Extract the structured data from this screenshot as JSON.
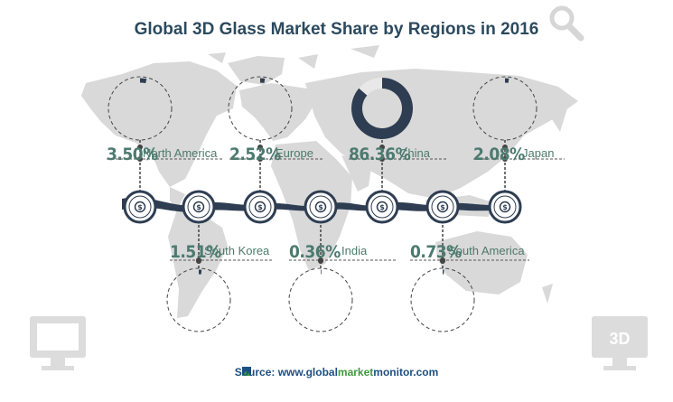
{
  "page": {
    "title": "Global 3D Glass Market Share by Regions in 2016",
    "source_prefix": "Source: www.global",
    "source_highlight": "market",
    "source_suffix": "monitor.com",
    "badge_3d": "3D"
  },
  "colors": {
    "accent": "#2e3d52",
    "map": "#d9d9d9",
    "text_green": "#4c7a6f",
    "title": "#2c4a5e"
  },
  "chart_data": {
    "type": "pie",
    "title": "Global 3D Glass Market Share by Regions in 2016",
    "unit": "%",
    "categories": [
      "North America",
      "Europe",
      "China",
      "Japan",
      "South Korea",
      "India",
      "South America"
    ],
    "values": [
      3.5,
      2.52,
      86.36,
      2.08,
      1.51,
      0.36,
      0.73
    ],
    "labels": [
      "3.50%",
      "2.52%",
      "86.36%",
      "2.08%",
      "1.51%",
      "0.36%",
      "0.73%"
    ]
  },
  "icons": [
    "magnifier-icon",
    "monitor-icon",
    "3d-monitor-icon",
    "dollar-coin-icon",
    "globe-logo-icon"
  ]
}
